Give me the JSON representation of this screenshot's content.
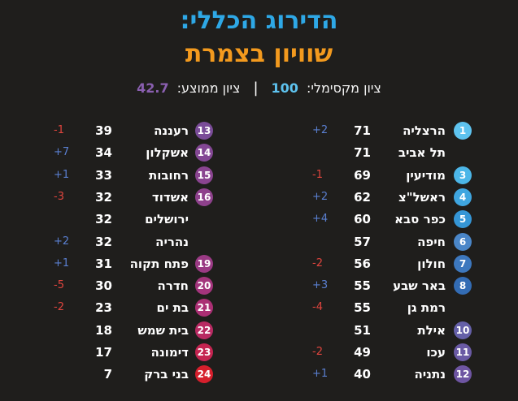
{
  "header": {
    "title_line1": "הדירוג הכללי:",
    "title_line2": "שוויון בצמרת",
    "max_label": "ציון מקסימלי:",
    "max_value": "100",
    "separator": "|",
    "avg_label": "ציון ממוצע:",
    "avg_value": "42.7"
  },
  "colors": {
    "background": "#1f1e1c",
    "title_blue": "#2ea8e6",
    "title_orange": "#f39a1e",
    "up": "#5a7fd0",
    "down": "#e0453e"
  },
  "right_column": [
    {
      "rank": "1",
      "name": "הרצליה",
      "score": "71",
      "change": "+2",
      "dir": "up",
      "color": "#5ec3ef"
    },
    {
      "rank": "",
      "name": "תל אביב",
      "score": "71",
      "change": "",
      "dir": "",
      "color": ""
    },
    {
      "rank": "3",
      "name": "מודיעין",
      "score": "69",
      "change": "-1",
      "dir": "down",
      "color": "#4cb6e8"
    },
    {
      "rank": "4",
      "name": "ראשל\"צ",
      "score": "62",
      "change": "+2",
      "dir": "up",
      "color": "#3fa6e0"
    },
    {
      "rank": "5",
      "name": "כפר סבא",
      "score": "60",
      "change": "+4",
      "dir": "up",
      "color": "#3596d6"
    },
    {
      "rank": "6",
      "name": "חיפה",
      "score": "57",
      "change": "",
      "dir": "",
      "color": "#4a86c8"
    },
    {
      "rank": "7",
      "name": "חולון",
      "score": "56",
      "change": "-2",
      "dir": "down",
      "color": "#3d78be"
    },
    {
      "rank": "8",
      "name": "באר שבע",
      "score": "55",
      "change": "+3",
      "dir": "up",
      "color": "#336cb4"
    },
    {
      "rank": "",
      "name": "רמת גן",
      "score": "55",
      "change": "-4",
      "dir": "down",
      "color": ""
    },
    {
      "rank": "10",
      "name": "אילת",
      "score": "51",
      "change": "",
      "dir": "",
      "color": "#6560a8"
    },
    {
      "rank": "11",
      "name": "עכו",
      "score": "49",
      "change": "-2",
      "dir": "down",
      "color": "#6a5aa4"
    },
    {
      "rank": "12",
      "name": "נתניה",
      "score": "40",
      "change": "+1",
      "dir": "up",
      "color": "#6e55a2"
    }
  ],
  "left_column": [
    {
      "rank": "13",
      "name": "רעננה",
      "score": "39",
      "change": "-1",
      "dir": "down",
      "color": "#7a4c98"
    },
    {
      "rank": "14",
      "name": "אשקלון",
      "score": "34",
      "change": "+7",
      "dir": "up",
      "color": "#834794"
    },
    {
      "rank": "15",
      "name": "רחובות",
      "score": "33",
      "change": "+1",
      "dir": "up",
      "color": "#8a4490"
    },
    {
      "rank": "16",
      "name": "אשדוד",
      "score": "32",
      "change": "-3",
      "dir": "down",
      "color": "#8e418c"
    },
    {
      "rank": "",
      "name": "ירושלים",
      "score": "32",
      "change": "",
      "dir": "",
      "color": ""
    },
    {
      "rank": "",
      "name": "נהריה",
      "score": "32",
      "change": "+2",
      "dir": "up",
      "color": ""
    },
    {
      "rank": "19",
      "name": "פתח תקוה",
      "score": "31",
      "change": "+1",
      "dir": "up",
      "color": "#9a3a84"
    },
    {
      "rank": "20",
      "name": "חדרה",
      "score": "30",
      "change": "-5",
      "dir": "down",
      "color": "#a3347c"
    },
    {
      "rank": "21",
      "name": "בת ים",
      "score": "23",
      "change": "-2",
      "dir": "down",
      "color": "#ab2f74"
    },
    {
      "rank": "22",
      "name": "בית שמש",
      "score": "18",
      "change": "",
      "dir": "",
      "color": "#b82a62"
    },
    {
      "rank": "23",
      "name": "דימונה",
      "score": "17",
      "change": "",
      "dir": "",
      "color": "#c42450"
    },
    {
      "rank": "24",
      "name": "בני ברק",
      "score": "7",
      "change": "",
      "dir": "",
      "color": "#d61f2c"
    }
  ]
}
